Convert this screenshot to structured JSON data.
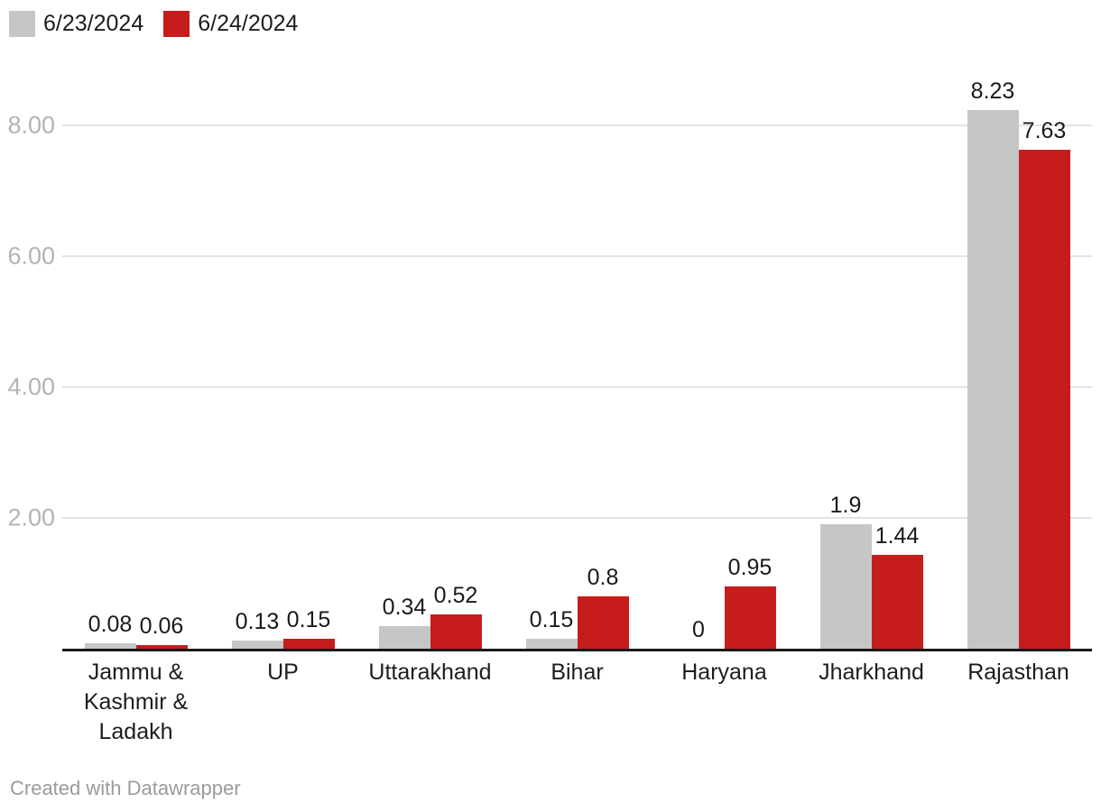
{
  "chart_data": {
    "type": "bar",
    "title": "",
    "xlabel": "",
    "ylabel": "",
    "categories": [
      "Jammu & Kashmir & Ladakh",
      "UP",
      "Uttarakhand",
      "Bihar",
      "Haryana",
      "Jharkhand",
      "Rajasthan"
    ],
    "series": [
      {
        "name": "6/23/2024",
        "color": "#c6c6c6",
        "values": [
          0.08,
          0.13,
          0.34,
          0.15,
          0,
          1.9,
          8.23
        ]
      },
      {
        "name": "6/24/2024",
        "color": "#c61d1c",
        "values": [
          0.06,
          0.15,
          0.52,
          0.8,
          0.95,
          1.44,
          7.63
        ]
      }
    ],
    "ylim": [
      0,
      8.88
    ],
    "yticks": [
      2,
      4,
      6,
      8
    ],
    "ytick_labels": [
      "2.00",
      "4.00",
      "6.00",
      "8.00"
    ],
    "grid": true,
    "bar_value_labels": true,
    "legend_position": "top-left"
  },
  "style": {
    "background": "#ffffff",
    "grid_color": "#e3e3e3",
    "axis_line_color": "#191919",
    "tick_label_color": "#b3b3b3",
    "value_label_color": "#1a1a1a",
    "category_label_color": "#1d1d1d",
    "footer_color": "#9b9b9b"
  },
  "footer": {
    "credit": "Created with Datawrapper"
  }
}
